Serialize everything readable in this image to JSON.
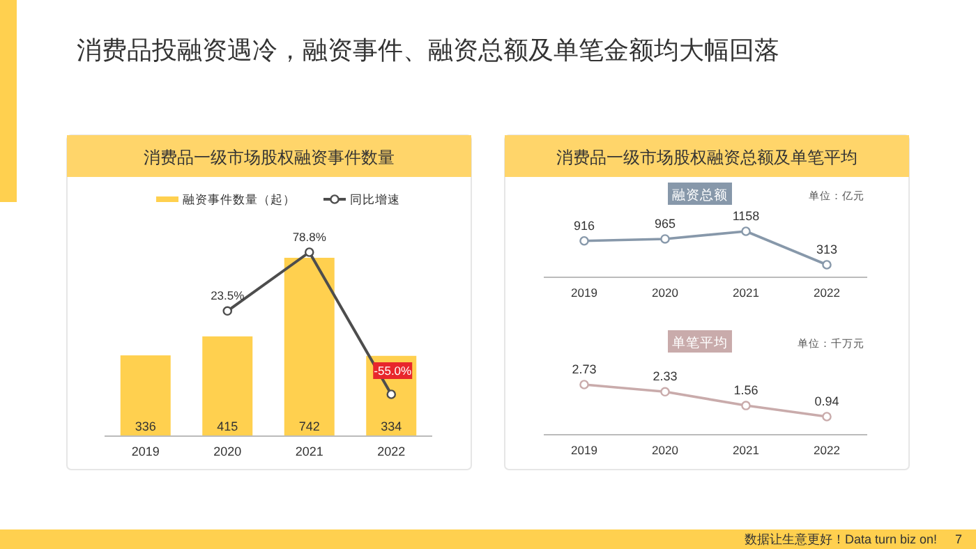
{
  "chart_data": [
    {
      "type": "other",
      "title": "消费品投融资遇冷，融资事件、融资总额及单笔金额均大幅回落",
      "annotations": [
        "数据让生意更好！Data turn biz on!",
        "7"
      ]
    },
    {
      "type": "bar",
      "title": "消费品一级市场股权融资事件数量",
      "categories": [
        "2019",
        "2020",
        "2021",
        "2022"
      ],
      "legend": "top",
      "marker": "circle",
      "series": [
        {
          "name": "融资事件数量（起）",
          "type": "bar",
          "color": "#ffd04f",
          "values": [
            336,
            415,
            742,
            334
          ],
          "value_labels": [
            "336",
            "415",
            "742",
            "334"
          ]
        },
        {
          "name": "同比增速",
          "type": "line",
          "axis": "y2",
          "color": "#4d4d4d",
          "values": [
            null,
            23.5,
            78.8,
            -55.0
          ],
          "value_labels": [
            null,
            "23.5%",
            "78.8%",
            "-55.0%"
          ]
        }
      ]
    },
    {
      "type": "line",
      "title": "消费品一级市场股权融资总额及单笔平均",
      "subtitle": "融资总额",
      "categories": [
        "2019",
        "2020",
        "2021",
        "2022"
      ],
      "values": [
        916,
        965,
        1158,
        313
      ],
      "color": "#8798aa",
      "marker": "circle",
      "data_labels": true,
      "annotations": [
        "单位：亿元"
      ]
    },
    {
      "type": "line",
      "subtitle": "单笔平均",
      "categories": [
        "2019",
        "2020",
        "2021",
        "2022"
      ],
      "values": [
        2.73,
        2.33,
        1.56,
        0.94
      ],
      "color": "#c9abab",
      "marker": "circle",
      "data_labels": true,
      "annotations": [
        "单位：千万元"
      ]
    }
  ]
}
